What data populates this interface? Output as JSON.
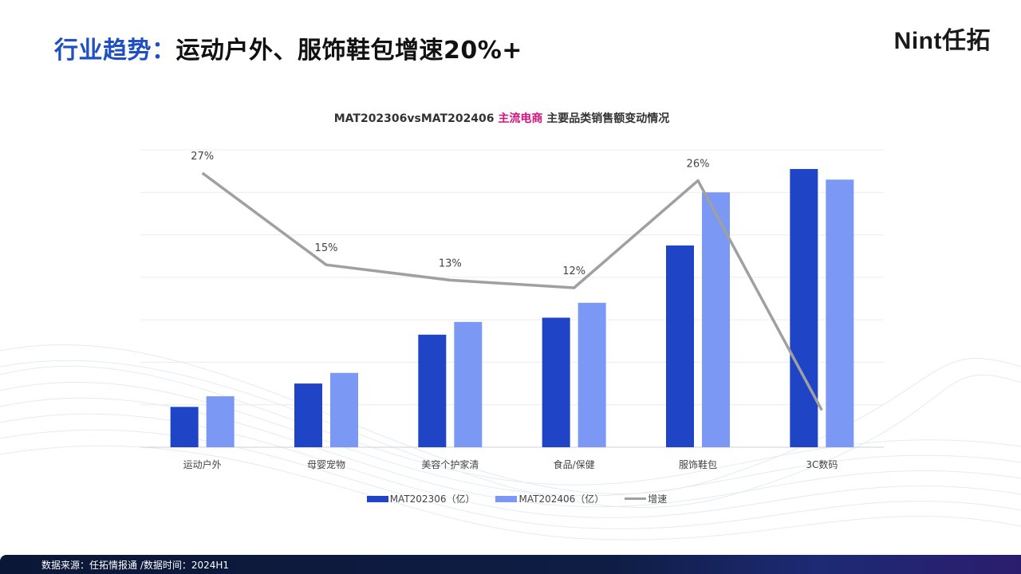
{
  "header": {
    "title_prefix": "行业趋势：",
    "title_main": "运动户外、服饰鞋包增速20%+",
    "logo": "Nint任拓"
  },
  "colors": {
    "accent": "#1f4fc4",
    "bar_2306": "#1f45c6",
    "bar_2406": "#7b98f4",
    "growth_line": "#a0a0a0",
    "highlight": "#d6117d"
  },
  "chart_data": {
    "type": "bar",
    "title_prefix": "MAT202306vsMAT202406 ",
    "title_highlight": "主流电商",
    "title_suffix": " 主要品类销售额变动情况",
    "categories": [
      "运动户外",
      "母婴宠物",
      "美容个护家清",
      "食品/保健",
      "服饰鞋包",
      "3C数码"
    ],
    "series": [
      {
        "name": "MAT202306（亿）",
        "values": [
          19,
          30,
          53,
          61,
          95,
          131
        ]
      },
      {
        "name": "MAT202406（亿）",
        "values": [
          24,
          35,
          59,
          68,
          120,
          126
        ]
      }
    ],
    "line": {
      "name": "增速",
      "values": [
        27,
        15,
        13,
        12,
        26,
        -4
      ],
      "labels": [
        "27%",
        "15%",
        "13%",
        "12%",
        "26%",
        ""
      ]
    },
    "ylim": [
      0,
      140
    ],
    "grid": true,
    "legend_position": "bottom"
  },
  "footer": {
    "source": "数据来源：任拓情报通 /数据时间：2024H1"
  }
}
